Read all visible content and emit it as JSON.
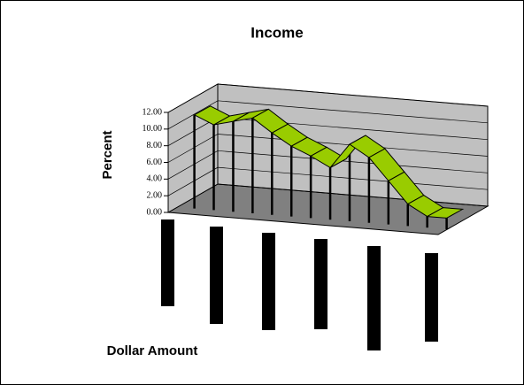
{
  "chart_data": {
    "type": "line3d",
    "title": "Income",
    "y_label": "Percent",
    "x_label": "Dollar Amount",
    "categories": [
      null,
      null,
      null,
      null,
      null,
      null,
      null,
      null,
      null,
      null,
      null,
      null,
      null,
      null
    ],
    "values": [
      10.6,
      9.6,
      10.2,
      10.8,
      9.2,
      7.8,
      6.8,
      5.6,
      8.6,
      7.2,
      4.6,
      2.0,
      0.7,
      0.7
    ],
    "color": "#99cc00",
    "ylim": [
      0,
      12
    ],
    "yticks": [
      {
        "value": 0,
        "label": "0.00"
      },
      {
        "value": 2,
        "label": "2.00"
      },
      {
        "value": 4,
        "label": "4.00"
      },
      {
        "value": 6,
        "label": "6.00"
      },
      {
        "value": 8,
        "label": "8.00"
      },
      {
        "value": 10,
        "label": "10.00"
      },
      {
        "value": 12,
        "label": "12.00"
      }
    ],
    "grid": true
  }
}
